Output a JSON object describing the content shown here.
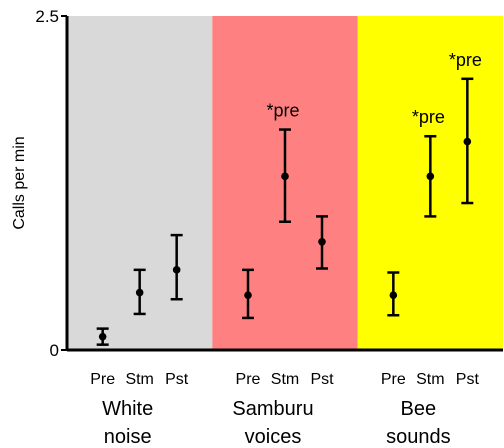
{
  "chart_data": {
    "type": "scatter",
    "ylabel": "Calls per min",
    "ylim": [
      0,
      2.5
    ],
    "yticks": [
      {
        "value": 0,
        "label": "0"
      },
      {
        "value": 2.5,
        "label": "2.5"
      }
    ],
    "groups": [
      {
        "label_lines": [
          "White",
          "noise"
        ],
        "background": "#d9d9d9",
        "points": [
          {
            "category": "Pre",
            "value": 0.1,
            "low": 0.04,
            "high": 0.16,
            "annotation": ""
          },
          {
            "category": "Stm",
            "value": 0.43,
            "low": 0.27,
            "high": 0.6,
            "annotation": ""
          },
          {
            "category": "Pst",
            "value": 0.6,
            "low": 0.38,
            "high": 0.86,
            "annotation": ""
          }
        ]
      },
      {
        "label_lines": [
          "Samburu",
          "voices"
        ],
        "background": "#ff8080",
        "points": [
          {
            "category": "Pre",
            "value": 0.41,
            "low": 0.24,
            "high": 0.6,
            "annotation": ""
          },
          {
            "category": "Stm",
            "value": 1.3,
            "low": 0.96,
            "high": 1.65,
            "annotation": "*pre"
          },
          {
            "category": "Pst",
            "value": 0.81,
            "low": 0.61,
            "high": 1.0,
            "annotation": ""
          }
        ]
      },
      {
        "label_lines": [
          "Bee",
          "sounds"
        ],
        "background": "#ffff00",
        "points": [
          {
            "category": "Pre",
            "value": 0.41,
            "low": 0.26,
            "high": 0.58,
            "annotation": ""
          },
          {
            "category": "Stm",
            "value": 1.3,
            "low": 1.0,
            "high": 1.6,
            "annotation": "*pre"
          },
          {
            "category": "Pst",
            "value": 1.56,
            "low": 1.1,
            "high": 2.03,
            "annotation": "*pre"
          }
        ]
      }
    ],
    "grid": false,
    "legend": "none"
  }
}
